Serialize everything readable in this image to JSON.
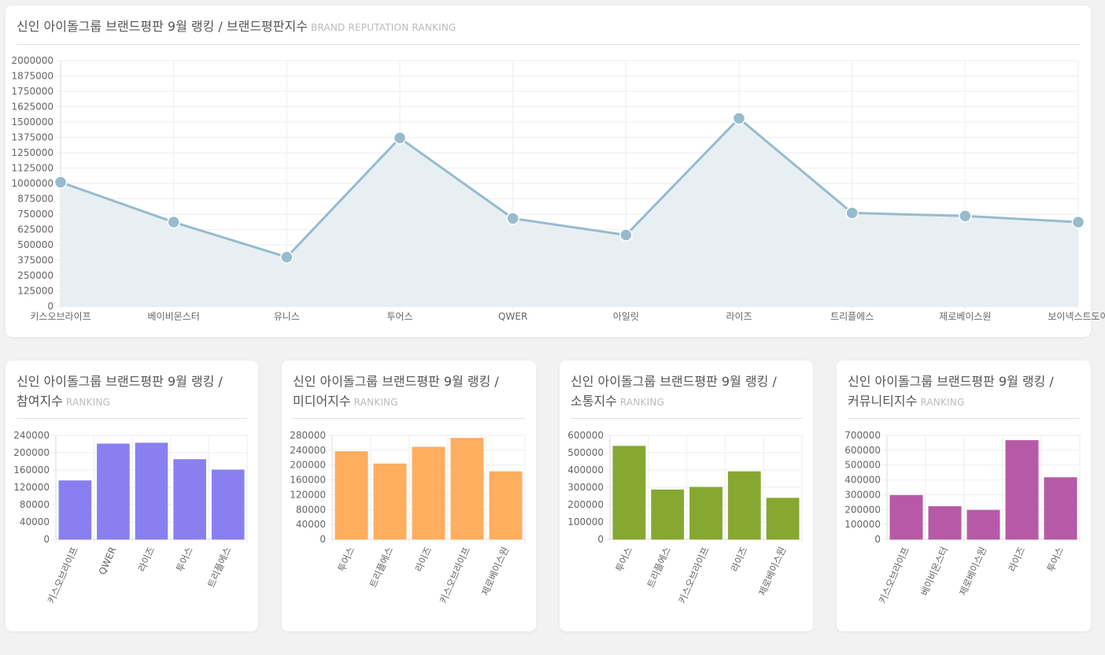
{
  "main": {
    "title": "신인 아이돌그룹 브랜드평판 9월 랭킹 / 브랜드평판지수",
    "subtitle": "BRAND REPUTATION RANKING"
  },
  "small_titles": [
    {
      "line1": "신인 아이돌그룹 브랜드평판 9월 랭킹 /",
      "line2": "참여지수",
      "sub": "RANKING"
    },
    {
      "line1": "신인 아이돌그룹 브랜드평판 9월 랭킹 /",
      "line2": "미디어지수",
      "sub": "RANKING"
    },
    {
      "line1": "신인 아이돌그룹 브랜드평판 9월 랭킹 /",
      "line2": "소통지수",
      "sub": "RANKING"
    },
    {
      "line1": "신인 아이돌그룹 브랜드평판 9월 랭킹 /",
      "line2": "커뮤니티지수",
      "sub": "RANKING"
    }
  ],
  "chart_data": [
    {
      "type": "line",
      "title": "신인 아이돌그룹 브랜드평판 9월 랭킹 / 브랜드평판지수",
      "categories": [
        "키스오브라이프",
        "베이비몬스터",
        "유니스",
        "투어스",
        "QWER",
        "아일릿",
        "라이즈",
        "트리플에스",
        "제로베이스원",
        "보이넥스트도어"
      ],
      "values": [
        1010000,
        685000,
        400000,
        1370000,
        715000,
        580000,
        1530000,
        760000,
        735000,
        685000
      ],
      "ylim": [
        0,
        2000000
      ],
      "yticks": [
        "2000000",
        "1875000",
        "1750000",
        "1625000",
        "1500000",
        "1375000",
        "1250000",
        "1125000",
        "1000000",
        "875000",
        "750000",
        "625000",
        "500000",
        "375000",
        "250000",
        "125000",
        "0"
      ],
      "color": "#97bbcd",
      "fill": "#e8eff3",
      "grid": true
    },
    {
      "type": "bar",
      "categories": [
        "키스오브라이프",
        "QWER",
        "라이즈",
        "투어스",
        "트리플에스"
      ],
      "values": [
        135000,
        220000,
        222000,
        184000,
        160000
      ],
      "ylim": [
        0,
        240000
      ],
      "yticks": [
        "240000",
        "200000",
        "160000",
        "120000",
        "80000",
        "40000",
        "0"
      ],
      "color": "#8a7ff0",
      "grid": true
    },
    {
      "type": "bar",
      "categories": [
        "투어스",
        "트리플에스",
        "라이즈",
        "키스오브라이프",
        "제로베이스원"
      ],
      "values": [
        236000,
        203000,
        248000,
        272000,
        182000
      ],
      "ylim": [
        0,
        280000
      ],
      "yticks": [
        "280000",
        "240000",
        "200000",
        "160000",
        "120000",
        "80000",
        "40000",
        "0"
      ],
      "color": "#ffad5e",
      "grid": true
    },
    {
      "type": "bar",
      "categories": [
        "투어스",
        "트리플에스",
        "키스오브라이프",
        "라이즈",
        "제로베이스원"
      ],
      "values": [
        537000,
        285000,
        300000,
        390000,
        237000
      ],
      "ylim": [
        0,
        600000
      ],
      "yticks": [
        "600000",
        "500000",
        "400000",
        "300000",
        "200000",
        "100000",
        "0"
      ],
      "color": "#86a831",
      "grid": true
    },
    {
      "type": "bar",
      "categories": [
        "키스오브라이프",
        "베이비몬스터",
        "제로베이스원",
        "라이즈",
        "투어스"
      ],
      "values": [
        295000,
        220000,
        195000,
        665000,
        415000
      ],
      "ylim": [
        0,
        700000
      ],
      "yticks": [
        "700000",
        "600000",
        "500000",
        "400000",
        "300000",
        "200000",
        "100000",
        "0"
      ],
      "color": "#b75aa6",
      "grid": true
    }
  ]
}
